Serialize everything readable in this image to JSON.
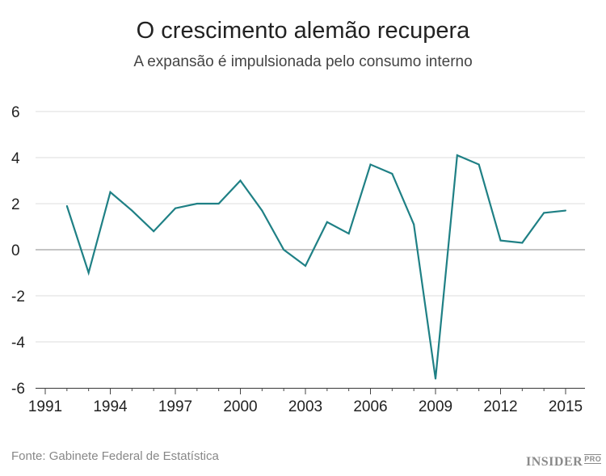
{
  "title": "O crescimento alemão recupera",
  "subtitle": "A expansão é impulsionada pelo consumo interno",
  "source": "Fonte: Gabinete Federal de Estatística",
  "logo": {
    "text": "INSIDER",
    "suffix": "PRO"
  },
  "chart_data": {
    "type": "line",
    "title": "O crescimento alemão recupera",
    "subtitle": "A expansão é impulsionada pelo consumo interno",
    "x": [
      1992,
      1993,
      1994,
      1995,
      1996,
      1997,
      1998,
      1999,
      2000,
      2001,
      2002,
      2003,
      2004,
      2005,
      2006,
      2007,
      2008,
      2009,
      2010,
      2011,
      2012,
      2013,
      2014,
      2015
    ],
    "values": [
      1.9,
      -1.0,
      2.5,
      1.7,
      0.8,
      1.8,
      2.0,
      2.0,
      3.0,
      1.7,
      0.0,
      -0.7,
      1.2,
      0.7,
      3.7,
      3.3,
      1.1,
      -5.6,
      4.1,
      3.7,
      0.4,
      0.3,
      1.6,
      1.7
    ],
    "xlim": [
      1991,
      2015
    ],
    "ylim": [
      -6,
      6
    ],
    "xticks": [
      1991,
      1994,
      1997,
      2000,
      2003,
      2006,
      2009,
      2012,
      2015
    ],
    "yticks": [
      6,
      4,
      2,
      0,
      -2,
      -4,
      -6
    ],
    "grid": true,
    "line_color": "#1f8085"
  }
}
